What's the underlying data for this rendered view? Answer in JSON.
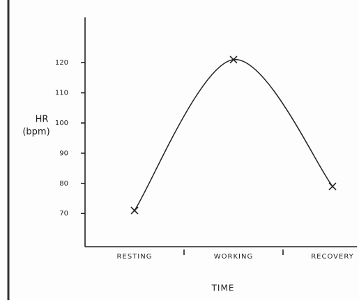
{
  "chart_data": {
    "type": "line",
    "y_label": [
      "HR",
      "(bpm)"
    ],
    "x_label": "TIME",
    "categories": [
      "RESTING",
      "WORKING",
      "RECOVERY"
    ],
    "values": [
      71,
      121,
      79
    ],
    "color": "#222222",
    "ylim": [
      59,
      135
    ],
    "yticks": [
      70,
      80,
      90,
      100,
      110,
      120
    ],
    "grid": false
  }
}
